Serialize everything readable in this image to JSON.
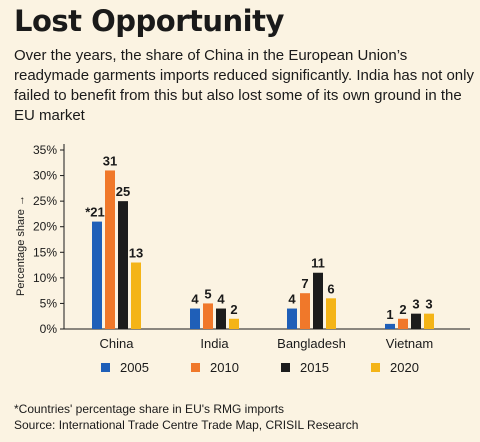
{
  "header": {
    "title": "Lost Opportunity",
    "subtitle": "Over the years, the share of China in the European Union’s readymade garments imports reduced significantly. India has not only failed to benefit from this but also lost some of its own ground in the EU market"
  },
  "footer": {
    "footnote": "*Countries' percentage share in EU's RMG imports",
    "source": "Source: International Trade Centre Trade Map, CRISIL Research"
  },
  "chart_data": {
    "type": "bar",
    "categories": [
      "China",
      "India",
      "Bangladesh",
      "Vietnam"
    ],
    "series": [
      {
        "name": "2005",
        "values": [
          21,
          4,
          4,
          1
        ],
        "labels": [
          "*21",
          "4",
          "4",
          "1"
        ],
        "color": "#1f5fb8"
      },
      {
        "name": "2010",
        "values": [
          31,
          5,
          7,
          2
        ],
        "labels": [
          "31",
          "5",
          "7",
          "2"
        ],
        "color": "#f0782a"
      },
      {
        "name": "2015",
        "values": [
          25,
          4,
          11,
          3
        ],
        "labels": [
          "25",
          "4",
          "11",
          "3"
        ],
        "color": "#1c1c1c"
      },
      {
        "name": "2020",
        "values": [
          13,
          2,
          6,
          3
        ],
        "labels": [
          "13",
          "2",
          "6",
          "3"
        ],
        "color": "#f4b417"
      }
    ],
    "ylabel": "Percentage share →",
    "ylim": [
      0,
      35
    ],
    "yticks": [
      0,
      5,
      10,
      15,
      20,
      25,
      30,
      35
    ],
    "ytick_labels": [
      "0%",
      "5%",
      "10%",
      "15%",
      "20%",
      "25%",
      "30%",
      "35%"
    ],
    "grid": false,
    "legend_position": "bottom"
  }
}
